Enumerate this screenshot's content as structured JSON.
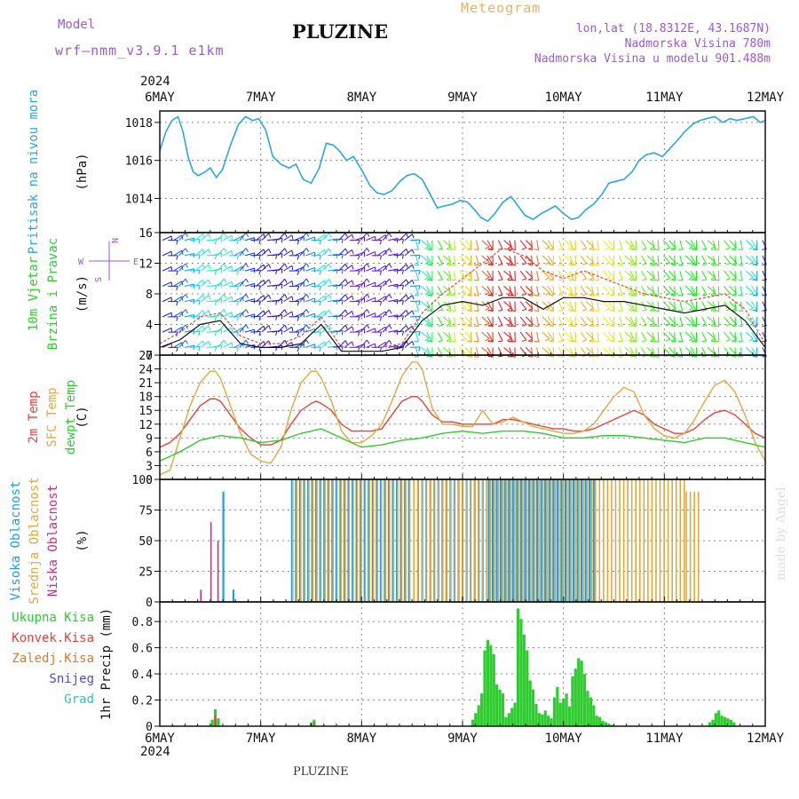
{
  "header": {
    "model_label": "Model",
    "model_value": "wrf–nmm_v3.9.1  e1km",
    "station_title": "PLUZINE",
    "meteogram_label": "Meteogram",
    "lonlat": "lon,lat (18.8312E, 43.1687N)",
    "elevation": "Nadmorska Visina 780m",
    "model_elevation": "Nadmorska Visina u modelu 901.488m",
    "footer_station": "PLUZINE",
    "credit": "made by Angel"
  },
  "colors": {
    "pressure": "#2aa7e0",
    "t2m": "#e8413c",
    "sfc": "#e0a841",
    "dewpt": "#2ecc2e",
    "high_cloud": "#1e9ee0",
    "mid_cloud": "#e0a841",
    "low_cloud": "#d02a8c",
    "precip": "#2ecc2e",
    "conv": "#e8413c",
    "header_purple": "#9c59d1",
    "header_gold": "#e0b36e"
  },
  "axes": {
    "year_label": "2024",
    "day_labels": [
      "6MAY",
      "7MAY",
      "8MAY",
      "9MAY",
      "10MAY",
      "11MAY",
      "12MAY"
    ]
  },
  "chart_data": [
    {
      "type": "line",
      "name": "pressure-panel",
      "ylabel_lines": [
        "Pritisak na nivou mora"
      ],
      "unit": "(hPa)",
      "ylim": [
        1012.2,
        1018.6
      ],
      "yticks": [
        1014,
        1016,
        1018
      ],
      "series": [
        {
          "name": "",
          "x": [
            0,
            0.06,
            0.12,
            0.18,
            0.23,
            0.28,
            0.33,
            0.38,
            0.45,
            0.5,
            0.56,
            0.62,
            0.7,
            0.78,
            0.85,
            0.92,
            0.98,
            1.05,
            1.12,
            1.2,
            1.28,
            1.35,
            1.42,
            1.5,
            1.58,
            1.65,
            1.72,
            1.78,
            1.85,
            1.92,
            2.0,
            2.08,
            2.15,
            2.22,
            2.3,
            2.38,
            2.45,
            2.52,
            2.6,
            2.68,
            2.75,
            2.82,
            2.9,
            2.98,
            3.05,
            3.12,
            3.18,
            3.25,
            3.32,
            3.4,
            3.48,
            3.55,
            3.62,
            3.7,
            3.78,
            3.85,
            3.92,
            4.0,
            4.08,
            4.15,
            4.22,
            4.3,
            4.38,
            4.45,
            4.52,
            4.6,
            4.68,
            4.75,
            4.82,
            4.9,
            4.98,
            5.05,
            5.12,
            5.2,
            5.28,
            5.35,
            5.42,
            5.5,
            5.58,
            5.65,
            5.72,
            5.8,
            5.88,
            5.95,
            6.0
          ],
          "values": [
            1016.5,
            1017.5,
            1018.1,
            1018.3,
            1017.5,
            1016.2,
            1015.4,
            1015.2,
            1015.4,
            1015.6,
            1015.1,
            1015.5,
            1016.8,
            1017.9,
            1018.3,
            1018.1,
            1018.2,
            1017.6,
            1016.2,
            1015.8,
            1015.6,
            1015.8,
            1015.0,
            1014.8,
            1015.6,
            1016.9,
            1016.8,
            1016.5,
            1016.0,
            1016.2,
            1015.5,
            1014.7,
            1014.3,
            1014.2,
            1014.4,
            1014.9,
            1015.2,
            1015.3,
            1015.0,
            1014.2,
            1013.5,
            1013.6,
            1013.7,
            1013.9,
            1013.8,
            1013.4,
            1013.0,
            1012.8,
            1013.2,
            1013.8,
            1014.1,
            1013.6,
            1013.1,
            1012.9,
            1013.2,
            1013.4,
            1013.6,
            1013.2,
            1012.9,
            1013.0,
            1013.4,
            1013.7,
            1014.2,
            1014.8,
            1014.9,
            1015.0,
            1015.4,
            1016.0,
            1016.3,
            1016.4,
            1016.2,
            1016.6,
            1017.0,
            1017.5,
            1017.9,
            1018.1,
            1018.2,
            1018.3,
            1018.0,
            1018.2,
            1018.1,
            1018.2,
            1018.3,
            1018.0,
            1018.1
          ]
        }
      ]
    },
    {
      "type": "line",
      "name": "wind-panel",
      "ylabel_lines": [
        "10m Vjetar",
        "Brzina i Pravac"
      ],
      "unit": "(m/s)",
      "ylim": [
        0,
        16
      ],
      "yticks": [
        0,
        4,
        8,
        12,
        16
      ],
      "compass": {
        "n": "N",
        "w": "W",
        "e": "E",
        "s": "S"
      },
      "series": [
        {
          "name": "",
          "x": [
            0,
            0.2,
            0.4,
            0.6,
            0.8,
            1.0,
            1.2,
            1.4,
            1.6,
            1.8,
            2.0,
            2.2,
            2.4,
            2.6,
            2.8,
            3.0,
            3.2,
            3.4,
            3.6,
            3.8,
            4.0,
            4.2,
            4.4,
            4.6,
            4.8,
            5.0,
            5.2,
            5.4,
            5.6,
            5.8,
            6.0
          ],
          "values": [
            1.0,
            2.0,
            4.0,
            4.5,
            1.5,
            1.0,
            1.0,
            1.5,
            4.0,
            0.5,
            0.5,
            0.5,
            1.0,
            4.5,
            6.5,
            7.0,
            6.5,
            7.5,
            7.5,
            6.0,
            7.5,
            7.5,
            7.0,
            7.0,
            6.5,
            6.0,
            5.5,
            6.0,
            6.5,
            4.5,
            1.0
          ]
        },
        {
          "name": "",
          "x": [
            0,
            0.2,
            0.4,
            0.6,
            0.8,
            1.0,
            1.2,
            1.4,
            1.6,
            1.8,
            2.0,
            2.2,
            2.4,
            2.6,
            2.8,
            3.0,
            3.2,
            3.4,
            3.6,
            3.8,
            4.0,
            4.2,
            4.4,
            4.6,
            4.8,
            5.0,
            5.2,
            5.4,
            5.6,
            5.8,
            6.0
          ],
          "values": [
            1.5,
            3.0,
            5.0,
            5.5,
            2.5,
            1.5,
            1.5,
            2.5,
            5.0,
            1.0,
            1.0,
            1.0,
            1.5,
            5.5,
            8.0,
            10.0,
            12.0,
            14.0,
            13.0,
            11.0,
            10.0,
            11.0,
            10.0,
            9.0,
            8.0,
            7.5,
            7.0,
            7.5,
            8.0,
            6.0,
            1.5
          ]
        }
      ]
    },
    {
      "type": "line",
      "name": "temperature-panel",
      "ylabel_lines": [
        "2m Temp",
        "SFC Temp",
        "dewpt Temp"
      ],
      "unit": "(C)",
      "ylim": [
        0,
        27
      ],
      "yticks": [
        0,
        3,
        6,
        9,
        12,
        15,
        18,
        21,
        24,
        27
      ],
      "series": [
        {
          "name": "2m Temp",
          "x": [
            0,
            0.1,
            0.2,
            0.3,
            0.4,
            0.5,
            0.55,
            0.6,
            0.7,
            0.8,
            0.9,
            1.0,
            1.1,
            1.2,
            1.3,
            1.4,
            1.5,
            1.55,
            1.6,
            1.7,
            1.8,
            1.9,
            2.0,
            2.1,
            2.2,
            2.3,
            2.4,
            2.5,
            2.55,
            2.6,
            2.7,
            2.8,
            2.9,
            3.0,
            3.1,
            3.2,
            3.3,
            3.4,
            3.5,
            3.6,
            3.7,
            3.8,
            3.9,
            4.0,
            4.1,
            4.2,
            4.3,
            4.4,
            4.5,
            4.6,
            4.7,
            4.8,
            4.9,
            5.0,
            5.1,
            5.2,
            5.3,
            5.4,
            5.5,
            5.6,
            5.7,
            5.8,
            5.9,
            6.0
          ],
          "values": [
            7,
            8,
            10,
            13,
            16,
            17.5,
            17.5,
            17,
            14,
            11,
            9,
            7.5,
            7.5,
            8.5,
            12,
            15,
            16.5,
            17,
            16.5,
            15,
            12,
            10.5,
            10.5,
            10.5,
            11,
            14,
            17,
            18,
            18,
            17,
            14,
            12.5,
            12.5,
            12,
            12,
            12,
            12,
            13,
            13,
            12.5,
            12,
            11.5,
            11,
            11,
            10.5,
            10.5,
            11,
            12,
            13,
            14,
            15,
            14,
            12,
            11,
            10,
            10,
            11,
            13,
            14.5,
            15,
            14,
            12,
            10,
            9
          ]
        },
        {
          "name": "SFC Temp",
          "x": [
            0,
            0.1,
            0.2,
            0.3,
            0.4,
            0.5,
            0.55,
            0.6,
            0.7,
            0.8,
            0.9,
            1.0,
            1.1,
            1.2,
            1.3,
            1.4,
            1.5,
            1.55,
            1.6,
            1.7,
            1.8,
            1.9,
            2.0,
            2.1,
            2.2,
            2.3,
            2.4,
            2.5,
            2.55,
            2.6,
            2.7,
            2.8,
            2.9,
            3.0,
            3.1,
            3.2,
            3.3,
            3.4,
            3.5,
            3.6,
            3.7,
            3.8,
            3.9,
            4.0,
            4.1,
            4.2,
            4.3,
            4.4,
            4.5,
            4.6,
            4.7,
            4.8,
            4.9,
            5.0,
            5.1,
            5.2,
            5.3,
            5.4,
            5.5,
            5.6,
            5.7,
            5.8,
            5.9,
            6.0
          ],
          "values": [
            1,
            2,
            9,
            16,
            21,
            23.5,
            23.5,
            22,
            16,
            10,
            5.5,
            4,
            3.5,
            7,
            15,
            21,
            23.5,
            23.5,
            22,
            17,
            10.5,
            8,
            8,
            9.5,
            12,
            17,
            22.5,
            25.5,
            25.5,
            24,
            15.5,
            12,
            12,
            11.5,
            11.5,
            15,
            12,
            12.5,
            13.5,
            12.5,
            11.5,
            11,
            10.5,
            10,
            10,
            10.5,
            12,
            15,
            18,
            20,
            19,
            14,
            11,
            9.5,
            9,
            10,
            13,
            17,
            20.5,
            21.5,
            19,
            14,
            8,
            4
          ]
        },
        {
          "name": "dewpt Temp",
          "x": [
            0,
            0.2,
            0.4,
            0.6,
            0.8,
            1.0,
            1.2,
            1.4,
            1.6,
            1.8,
            2.0,
            2.2,
            2.4,
            2.6,
            2.8,
            3.0,
            3.2,
            3.4,
            3.6,
            3.8,
            4.0,
            4.2,
            4.4,
            4.6,
            4.8,
            5.0,
            5.2,
            5.4,
            5.6,
            5.8,
            6.0
          ],
          "values": [
            4,
            6,
            8.5,
            9.5,
            9,
            8,
            8.5,
            10,
            11,
            9,
            7,
            7.5,
            8.5,
            9,
            10,
            10.5,
            10,
            10.5,
            10.5,
            10,
            9,
            9,
            9.5,
            9.5,
            9,
            8.5,
            8,
            9,
            9,
            8,
            7
          ]
        }
      ]
    },
    {
      "type": "bar",
      "name": "cloud-panel",
      "ylabel_lines": [
        "Visoka Oblacnost",
        "Srednja Oblacnost",
        "Niska Oblacnost"
      ],
      "unit": "(%)",
      "ylim": [
        0,
        100
      ],
      "yticks": [
        0,
        25,
        50,
        75,
        100
      ],
      "series": [
        {
          "name": "Visoka Oblacnost",
          "ranges": [
            [
              0.62,
              0.66,
              90
            ],
            [
              0.72,
              0.74,
              10
            ],
            [
              1.3,
              2.5,
              100
            ],
            [
              2.55,
              3.2,
              100
            ],
            [
              3.25,
              4.3,
              100
            ]
          ]
        },
        {
          "name": "Srednja Oblacnost",
          "ranges": [
            [
              1.3,
              5.2,
              100
            ],
            [
              5.2,
              5.35,
              90
            ]
          ]
        },
        {
          "name": "Niska Oblacnost",
          "ranges": [
            [
              0.4,
              0.42,
              10
            ],
            [
              0.5,
              0.52,
              65
            ],
            [
              0.57,
              0.59,
              50
            ]
          ]
        }
      ]
    },
    {
      "type": "bar",
      "name": "precip-panel",
      "ylabel_lines": [
        "Ukupna Kisa",
        "Konvek.Kisa",
        "Zaledj.Kisa",
        "Snijeg",
        "Grad"
      ],
      "unit": "1hr Precip (mm)",
      "ylim": [
        0,
        0.95
      ],
      "yticks": [
        0,
        0.2,
        0.4,
        0.6,
        0.8
      ],
      "series": [
        {
          "name": "Ukupna Kisa",
          "x": [
            0.52,
            0.55,
            0.58,
            1.5,
            1.53,
            3.1,
            3.13,
            3.16,
            3.19,
            3.22,
            3.25,
            3.28,
            3.31,
            3.34,
            3.37,
            3.4,
            3.43,
            3.46,
            3.49,
            3.52,
            3.55,
            3.58,
            3.61,
            3.64,
            3.67,
            3.7,
            3.73,
            3.76,
            3.79,
            3.82,
            3.85,
            3.88,
            3.91,
            3.94,
            3.97,
            4.0,
            4.03,
            4.06,
            4.09,
            4.12,
            4.15,
            4.18,
            4.21,
            4.24,
            4.27,
            4.3,
            4.33,
            4.36,
            4.39,
            4.42,
            4.45,
            4.48,
            5.45,
            5.48,
            5.51,
            5.54,
            5.57,
            5.6,
            5.63,
            5.66,
            5.69
          ],
          "values": [
            0.05,
            0.13,
            0.06,
            0.03,
            0.05,
            0.05,
            0.1,
            0.16,
            0.25,
            0.58,
            0.66,
            0.62,
            0.55,
            0.32,
            0.28,
            0.25,
            0.07,
            0.1,
            0.14,
            0.18,
            0.9,
            0.82,
            0.7,
            0.58,
            0.35,
            0.28,
            0.17,
            0.1,
            0.09,
            0.12,
            0.08,
            0.06,
            0.22,
            0.3,
            0.18,
            0.21,
            0.25,
            0.15,
            0.38,
            0.44,
            0.52,
            0.5,
            0.4,
            0.27,
            0.22,
            0.16,
            0.08,
            0.07,
            0.04,
            0.03,
            0.02,
            0.01,
            0.03,
            0.05,
            0.1,
            0.12,
            0.08,
            0.07,
            0.06,
            0.05,
            0.03
          ]
        },
        {
          "name": "Konvek.Kisa",
          "x": [
            0.55,
            1.53
          ],
          "values": [
            0.08,
            0.03
          ]
        }
      ]
    }
  ]
}
